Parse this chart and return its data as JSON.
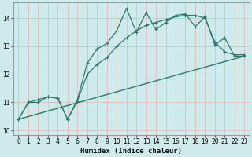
{
  "xlabel": "Humidex (Indice chaleur)",
  "bg_color": "#ceeaea",
  "grid_color": "#e8b8b8",
  "line_color": "#2a7a6a",
  "xlim": [
    -0.5,
    23.5
  ],
  "ylim": [
    9.85,
    14.55
  ],
  "xticks": [
    0,
    1,
    2,
    3,
    4,
    5,
    6,
    7,
    8,
    9,
    10,
    11,
    12,
    13,
    14,
    15,
    16,
    17,
    18,
    19,
    20,
    21,
    22,
    23
  ],
  "yticks": [
    10,
    11,
    12,
    13,
    14
  ],
  "line1_x": [
    0,
    1,
    2,
    3,
    4,
    5,
    6,
    7,
    8,
    9,
    10,
    11,
    12,
    13,
    14,
    15,
    16,
    17,
    18,
    19,
    20,
    21,
    22,
    23
  ],
  "line1_y": [
    10.4,
    11.0,
    11.0,
    11.2,
    11.15,
    10.4,
    11.1,
    12.4,
    12.9,
    13.1,
    13.55,
    14.35,
    13.5,
    14.2,
    13.6,
    13.85,
    14.1,
    14.15,
    13.7,
    14.05,
    13.05,
    13.3,
    12.65,
    12.65
  ],
  "line2_x": [
    0,
    1,
    2,
    3,
    4,
    5,
    6,
    7,
    8,
    9,
    10,
    11,
    12,
    13,
    14,
    15,
    16,
    17,
    18,
    19,
    20,
    21,
    22,
    23
  ],
  "line2_y": [
    10.4,
    11.0,
    11.1,
    11.2,
    11.15,
    10.4,
    11.05,
    12.0,
    12.35,
    12.6,
    13.0,
    13.3,
    13.55,
    13.75,
    13.85,
    13.95,
    14.05,
    14.1,
    14.1,
    14.0,
    13.15,
    12.8,
    12.7,
    12.7
  ],
  "line3_x": [
    0,
    23
  ],
  "line3_y": [
    10.4,
    12.65
  ]
}
